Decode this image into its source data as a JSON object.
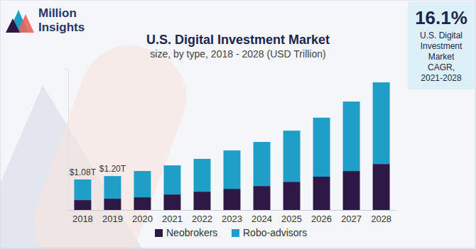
{
  "chart_data": {
    "type": "bar",
    "stacked": true,
    "title": "U.S. Digital Investment Market",
    "subtitle": "size, by type, 2018 - 2028 (USD Trillion)",
    "categories": [
      "2018",
      "2019",
      "2020",
      "2021",
      "2022",
      "2023",
      "2024",
      "2025",
      "2026",
      "2027",
      "2028"
    ],
    "series": [
      {
        "name": "Neobrokers",
        "color": "#2d1846",
        "values": [
          0.35,
          0.4,
          0.45,
          0.55,
          0.65,
          0.75,
          0.85,
          1.0,
          1.18,
          1.38,
          1.63
        ]
      },
      {
        "name": "Robo-advisors",
        "color": "#1e9fc8",
        "values": [
          0.73,
          0.8,
          0.93,
          1.03,
          1.16,
          1.36,
          1.56,
          1.81,
          2.09,
          2.46,
          2.89
        ]
      }
    ],
    "ylim": [
      0,
      5
    ],
    "yticks": [],
    "tick_labels": "x",
    "grid": false,
    "legend": "bottom",
    "annotations": [
      {
        "category": "2018",
        "value": 1.08,
        "text": "$1.08T"
      },
      {
        "category": "2019",
        "value": 1.2,
        "text": "$1.20T"
      }
    ],
    "callout": {
      "value_text": "16.1%",
      "text": [
        "U.S. Digital",
        "Investment",
        "Market",
        "CAGR,",
        "2021-2028"
      ]
    },
    "logo": [
      "Million",
      "Insights"
    ]
  }
}
